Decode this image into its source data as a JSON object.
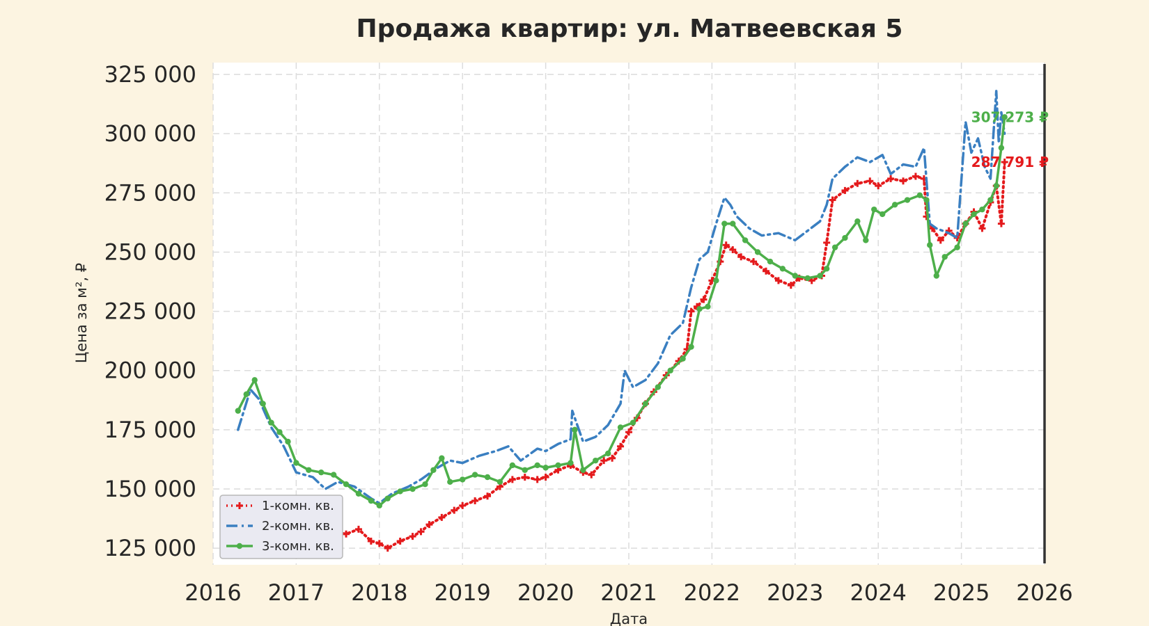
{
  "chart_data": {
    "type": "line",
    "title": "Продажа квартир: ул. Матвеевская 5",
    "xlabel": "Дата",
    "ylabel": "Цена за м², ₽",
    "xlim": [
      2016.0,
      2026.0
    ],
    "ylim": [
      118000,
      330000
    ],
    "x_ticks": [
      2016,
      2017,
      2018,
      2019,
      2020,
      2021,
      2022,
      2023,
      2024,
      2025,
      2026
    ],
    "x_tick_labels": [
      "2016",
      "2017",
      "2018",
      "2019",
      "2020",
      "2021",
      "2022",
      "2023",
      "2024",
      "2025",
      "2026"
    ],
    "y_ticks": [
      125000,
      150000,
      175000,
      200000,
      225000,
      250000,
      275000,
      300000,
      325000
    ],
    "y_tick_labels": [
      "125 000",
      "150 000",
      "175 000",
      "200 000",
      "225 000",
      "250 000",
      "275 000",
      "300 000",
      "325 000"
    ],
    "grid": true,
    "legend_position": "bottom-left",
    "end_line_x": 2026.0,
    "series": [
      {
        "name": "1-комн. кв.",
        "color": "#e41a1c",
        "style": "dotted-plus",
        "end_label": "287 791 ₽",
        "x": [
          2016.3,
          2016.45,
          2016.6,
          2016.8,
          2017.0,
          2017.2,
          2017.4,
          2017.6,
          2017.75,
          2017.9,
          2018.0,
          2018.1,
          2018.25,
          2018.4,
          2018.5,
          2018.6,
          2018.75,
          2018.9,
          2019.0,
          2019.15,
          2019.3,
          2019.45,
          2019.6,
          2019.75,
          2019.9,
          2020.0,
          2020.15,
          2020.3,
          2020.45,
          2020.55,
          2020.7,
          2020.8,
          2020.9,
          2021.0,
          2021.1,
          2021.2,
          2021.3,
          2021.45,
          2021.6,
          2021.7,
          2021.75,
          2021.82,
          2021.9,
          2022.0,
          2022.1,
          2022.17,
          2022.25,
          2022.35,
          2022.5,
          2022.65,
          2022.8,
          2022.95,
          2023.05,
          2023.2,
          2023.32,
          2023.38,
          2023.45,
          2023.6,
          2023.75,
          2023.9,
          2024.0,
          2024.15,
          2024.3,
          2024.45,
          2024.55,
          2024.58,
          2024.65,
          2024.75,
          2024.85,
          2024.95,
          2025.05,
          2025.15,
          2025.25,
          2025.35,
          2025.42,
          2025.48,
          2025.52
        ],
        "y": [
          143000,
          144000,
          140000,
          137000,
          136000,
          134000,
          132000,
          131000,
          133000,
          128000,
          127000,
          125000,
          128000,
          130000,
          132000,
          135000,
          138000,
          141000,
          143000,
          145000,
          147000,
          151000,
          154000,
          155000,
          154000,
          155000,
          158000,
          160000,
          157000,
          156000,
          162000,
          163000,
          168000,
          174000,
          180000,
          186000,
          191000,
          198000,
          204000,
          209000,
          225000,
          227000,
          230000,
          238000,
          246000,
          253000,
          251000,
          248000,
          246000,
          242000,
          238000,
          236000,
          239000,
          238000,
          240000,
          254000,
          272000,
          276000,
          279000,
          280000,
          278000,
          281000,
          280000,
          282000,
          281000,
          265000,
          260000,
          255000,
          259000,
          256000,
          262000,
          267000,
          260000,
          271000,
          278000,
          262000,
          288000
        ]
      },
      {
        "name": "2-комн. кв.",
        "color": "#3a7fc1",
        "style": "dashdot",
        "end_label": "",
        "x": [
          2016.3,
          2016.45,
          2016.55,
          2016.7,
          2016.85,
          2017.0,
          2017.2,
          2017.35,
          2017.5,
          2017.7,
          2017.9,
          2018.0,
          2018.15,
          2018.35,
          2018.5,
          2018.7,
          2018.85,
          2019.0,
          2019.2,
          2019.4,
          2019.55,
          2019.7,
          2019.9,
          2020.0,
          2020.15,
          2020.3,
          2020.32,
          2020.45,
          2020.6,
          2020.75,
          2020.9,
          2020.95,
          2021.05,
          2021.2,
          2021.35,
          2021.5,
          2021.65,
          2021.75,
          2021.85,
          2021.95,
          2022.05,
          2022.15,
          2022.22,
          2022.3,
          2022.45,
          2022.6,
          2022.8,
          2023.0,
          2023.15,
          2023.3,
          2023.38,
          2023.45,
          2023.6,
          2023.75,
          2023.9,
          2024.05,
          2024.15,
          2024.3,
          2024.45,
          2024.55,
          2024.62,
          2024.7,
          2024.85,
          2024.95,
          2025.05,
          2025.12,
          2025.2,
          2025.28,
          2025.35,
          2025.42,
          2025.45,
          2025.48,
          2025.52
        ],
        "y": [
          175000,
          192000,
          188000,
          176000,
          168000,
          157000,
          155000,
          150000,
          153000,
          151000,
          146000,
          144000,
          148000,
          151000,
          154000,
          159000,
          162000,
          161000,
          164000,
          166000,
          168000,
          162000,
          167000,
          166000,
          169000,
          171000,
          183000,
          170000,
          172000,
          177000,
          186000,
          200000,
          193000,
          196000,
          203000,
          215000,
          220000,
          235000,
          247000,
          250000,
          262000,
          273000,
          270000,
          265000,
          260000,
          257000,
          258000,
          255000,
          259000,
          263000,
          270000,
          281000,
          286000,
          290000,
          288000,
          291000,
          283000,
          287000,
          286000,
          294000,
          262000,
          260000,
          258000,
          256000,
          305000,
          292000,
          298000,
          286000,
          281000,
          318000,
          296000,
          309000,
          300000
        ]
      },
      {
        "name": "3-комн. кв.",
        "color": "#4daf4a",
        "style": "solid-dot",
        "end_label": "307 273 ₽",
        "x": [
          2016.3,
          2016.4,
          2016.5,
          2016.6,
          2016.7,
          2016.8,
          2016.9,
          2017.0,
          2017.15,
          2017.3,
          2017.45,
          2017.6,
          2017.75,
          2017.9,
          2018.0,
          2018.1,
          2018.25,
          2018.4,
          2018.55,
          2018.65,
          2018.75,
          2018.85,
          2019.0,
          2019.15,
          2019.3,
          2019.45,
          2019.6,
          2019.75,
          2019.9,
          2020.0,
          2020.15,
          2020.3,
          2020.35,
          2020.45,
          2020.6,
          2020.75,
          2020.9,
          2021.05,
          2021.2,
          2021.35,
          2021.5,
          2021.65,
          2021.75,
          2021.85,
          2021.95,
          2022.05,
          2022.15,
          2022.25,
          2022.4,
          2022.55,
          2022.7,
          2022.85,
          2023.0,
          2023.15,
          2023.3,
          2023.38,
          2023.48,
          2023.6,
          2023.75,
          2023.85,
          2023.95,
          2024.05,
          2024.2,
          2024.35,
          2024.5,
          2024.58,
          2024.62,
          2024.7,
          2024.8,
          2024.95,
          2025.05,
          2025.15,
          2025.25,
          2025.35,
          2025.42,
          2025.48,
          2025.52
        ],
        "y": [
          183000,
          190000,
          196000,
          186000,
          178000,
          174000,
          170000,
          161000,
          158000,
          157000,
          156000,
          152000,
          148000,
          145000,
          143000,
          146000,
          149000,
          150000,
          152000,
          158000,
          163000,
          153000,
          154000,
          156000,
          155000,
          153000,
          160000,
          158000,
          160000,
          159000,
          160000,
          161000,
          175000,
          158000,
          162000,
          165000,
          176000,
          178000,
          186000,
          193000,
          200000,
          205000,
          210000,
          226000,
          227000,
          238000,
          262000,
          262000,
          255000,
          250000,
          246000,
          243000,
          240000,
          239000,
          240000,
          243000,
          252000,
          256000,
          263000,
          255000,
          268000,
          266000,
          270000,
          272000,
          274000,
          272000,
          253000,
          240000,
          248000,
          252000,
          262000,
          266000,
          268000,
          272000,
          278000,
          294000,
          307000
        ]
      }
    ]
  }
}
